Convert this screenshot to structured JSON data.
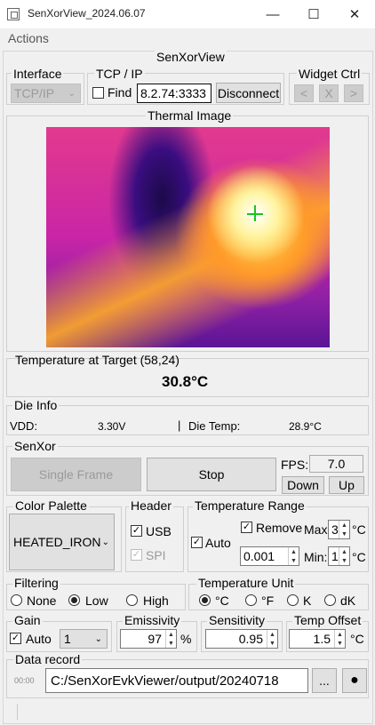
{
  "window": {
    "title": "SenXorView_2024.06.07"
  },
  "menu": {
    "actions": "Actions"
  },
  "app_title": "SenXorView",
  "interface": {
    "title": "Interface",
    "value": "TCP/IP"
  },
  "tcp": {
    "title": "TCP / IP",
    "find_label": "Find",
    "address": "8.2.74:3333",
    "disconnect": "Disconnect"
  },
  "widget_ctrl": {
    "title": "Widget Ctrl",
    "prev": "<",
    "close": "X",
    "next": ">"
  },
  "thermal": {
    "title": "Thermal Image"
  },
  "target": {
    "label": "Temperature at Target (58,24)",
    "value": "30.8°C"
  },
  "die_info": {
    "title": "Die Info",
    "vdd_label": "VDD:",
    "vdd_value": "3.30V",
    "sep": "|",
    "temp_label": "Die Temp:",
    "temp_value": "28.9°C"
  },
  "senxor": {
    "title": "SenXor",
    "single_frame": "Single Frame",
    "stop": "Stop",
    "fps_label": "FPS:",
    "fps_value": "7.0",
    "down": "Down",
    "up": "Up"
  },
  "palette": {
    "title": "Color Palette",
    "value": "HEATED_IRON"
  },
  "header": {
    "title": "Header",
    "usb": "USB",
    "spi": "SPI"
  },
  "temp_range": {
    "title": "Temperature Range",
    "auto": "Auto",
    "remove": "Remove",
    "max_label": "Max",
    "max_value": "3",
    "max_unit": "°C",
    "step": "0.001",
    "min_label": "Min:",
    "min_value": "1",
    "min_unit": "°C"
  },
  "filtering": {
    "title": "Filtering",
    "options": [
      "None",
      "Low",
      "High"
    ],
    "selected": "Low"
  },
  "temp_unit": {
    "title": "Temperature Unit",
    "options": [
      "°C",
      "°F",
      "K",
      "dK"
    ],
    "selected": "°C"
  },
  "gain": {
    "title": "Gain",
    "auto": "Auto",
    "value": "1"
  },
  "emissivity": {
    "title": "Emissivity",
    "value": "97",
    "unit": "%"
  },
  "sensitivity": {
    "title": "Sensitivity",
    "value": "0.95"
  },
  "temp_offset": {
    "title": "Temp Offset",
    "value": "1.5",
    "unit": "°C"
  },
  "data_record": {
    "title": "Data record",
    "timer": "00:00",
    "path": "C:/SenXorEvkViewer/output/20240718",
    "browse": "...",
    "record": "●"
  }
}
